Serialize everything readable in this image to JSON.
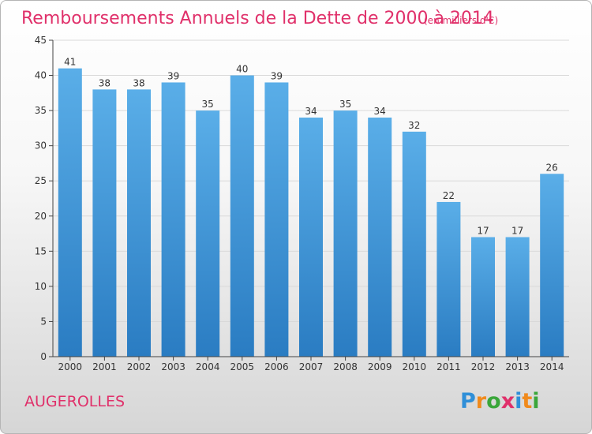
{
  "chart_data": {
    "type": "bar",
    "title": "Remboursements Annuels de la Dette de 2000 à 2014",
    "subtitle": "(en milliers d'€)",
    "categories": [
      "2000",
      "2001",
      "2002",
      "2003",
      "2004",
      "2005",
      "2006",
      "2007",
      "2008",
      "2009",
      "2010",
      "2011",
      "2012",
      "2013",
      "2014"
    ],
    "values": [
      41,
      38,
      38,
      39,
      35,
      40,
      39,
      34,
      35,
      34,
      32,
      22,
      17,
      17,
      26
    ],
    "yticks": [
      0,
      5,
      10,
      15,
      20,
      25,
      30,
      35,
      40,
      45
    ],
    "ylim": [
      0,
      45
    ],
    "xlabel": "",
    "ylabel": "",
    "bar_color_top": "#5aaee8",
    "bar_color_bottom": "#2a7cc2"
  },
  "commune": "AUGEROLLES",
  "logo": {
    "text": "Proxiti",
    "letters": [
      "P",
      "r",
      "o",
      "x",
      "i",
      "t",
      "i"
    ],
    "colors": [
      "#2f8fd8",
      "#f08a1c",
      "#3aa63a",
      "#e0306a",
      "#2f8fd8",
      "#f08a1c",
      "#3aa63a"
    ]
  }
}
